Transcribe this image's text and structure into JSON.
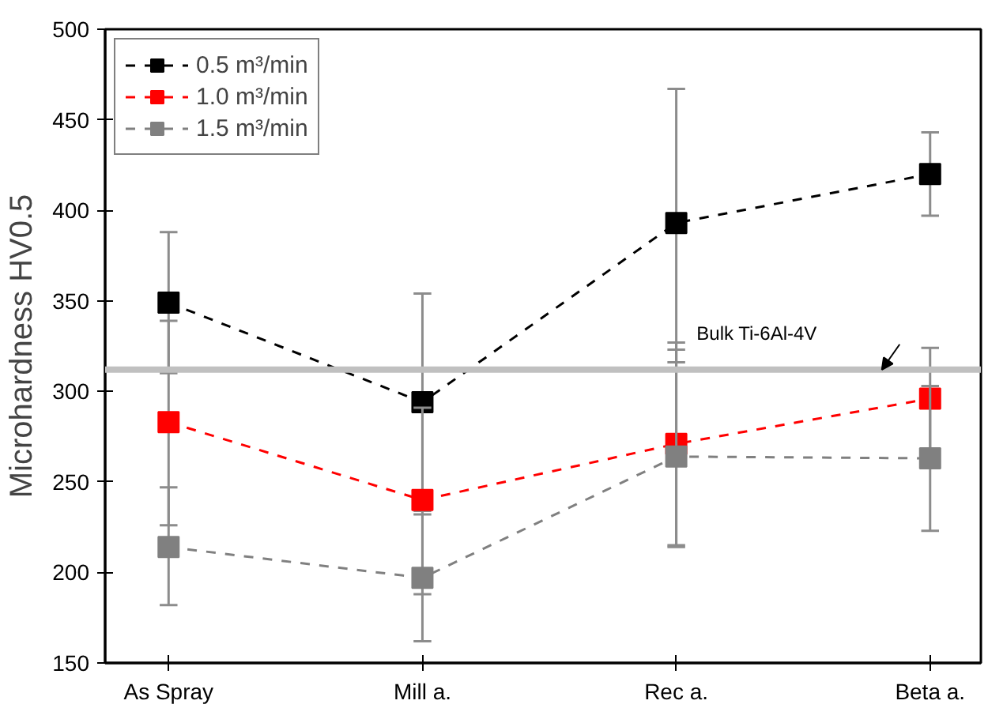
{
  "chart_data": {
    "type": "line",
    "ylabel": "Microhardness HV0.5",
    "categories": [
      "As Spray",
      "Mill a.",
      "Rec a.",
      "Beta a."
    ],
    "ylim": [
      150,
      500
    ],
    "yticks": [
      150,
      200,
      250,
      300,
      350,
      400,
      450,
      500
    ],
    "marker": "square",
    "line_style": "dashed",
    "legend": "top left",
    "grid": false,
    "series": [
      {
        "name": "0.5 m³/min",
        "color": "#000000",
        "values": [
          349,
          294,
          393,
          420
        ],
        "errors": [
          [
            310,
            388
          ],
          [
            234,
            354
          ],
          [
            316,
            467
          ],
          [
            397,
            443
          ]
        ]
      },
      {
        "name": "1.0 m³/min",
        "color": "#ff0000",
        "values": [
          283,
          240,
          271,
          296
        ],
        "errors": [
          [
            226,
            339
          ],
          [
            188,
            291
          ],
          [
            215,
            327
          ],
          [
            268,
            324
          ]
        ]
      },
      {
        "name": "1.5 m³/min",
        "color": "#808080",
        "values": [
          214,
          197,
          264,
          263
        ],
        "errors": [
          [
            182,
            247
          ],
          [
            162,
            232
          ],
          [
            214,
            323
          ],
          [
            223,
            303
          ]
        ]
      }
    ],
    "ref_lines": [
      {
        "axis": "y",
        "value": 312,
        "label": "Bulk Ti-6Al-4V",
        "color": "#c0c0c0"
      }
    ]
  }
}
